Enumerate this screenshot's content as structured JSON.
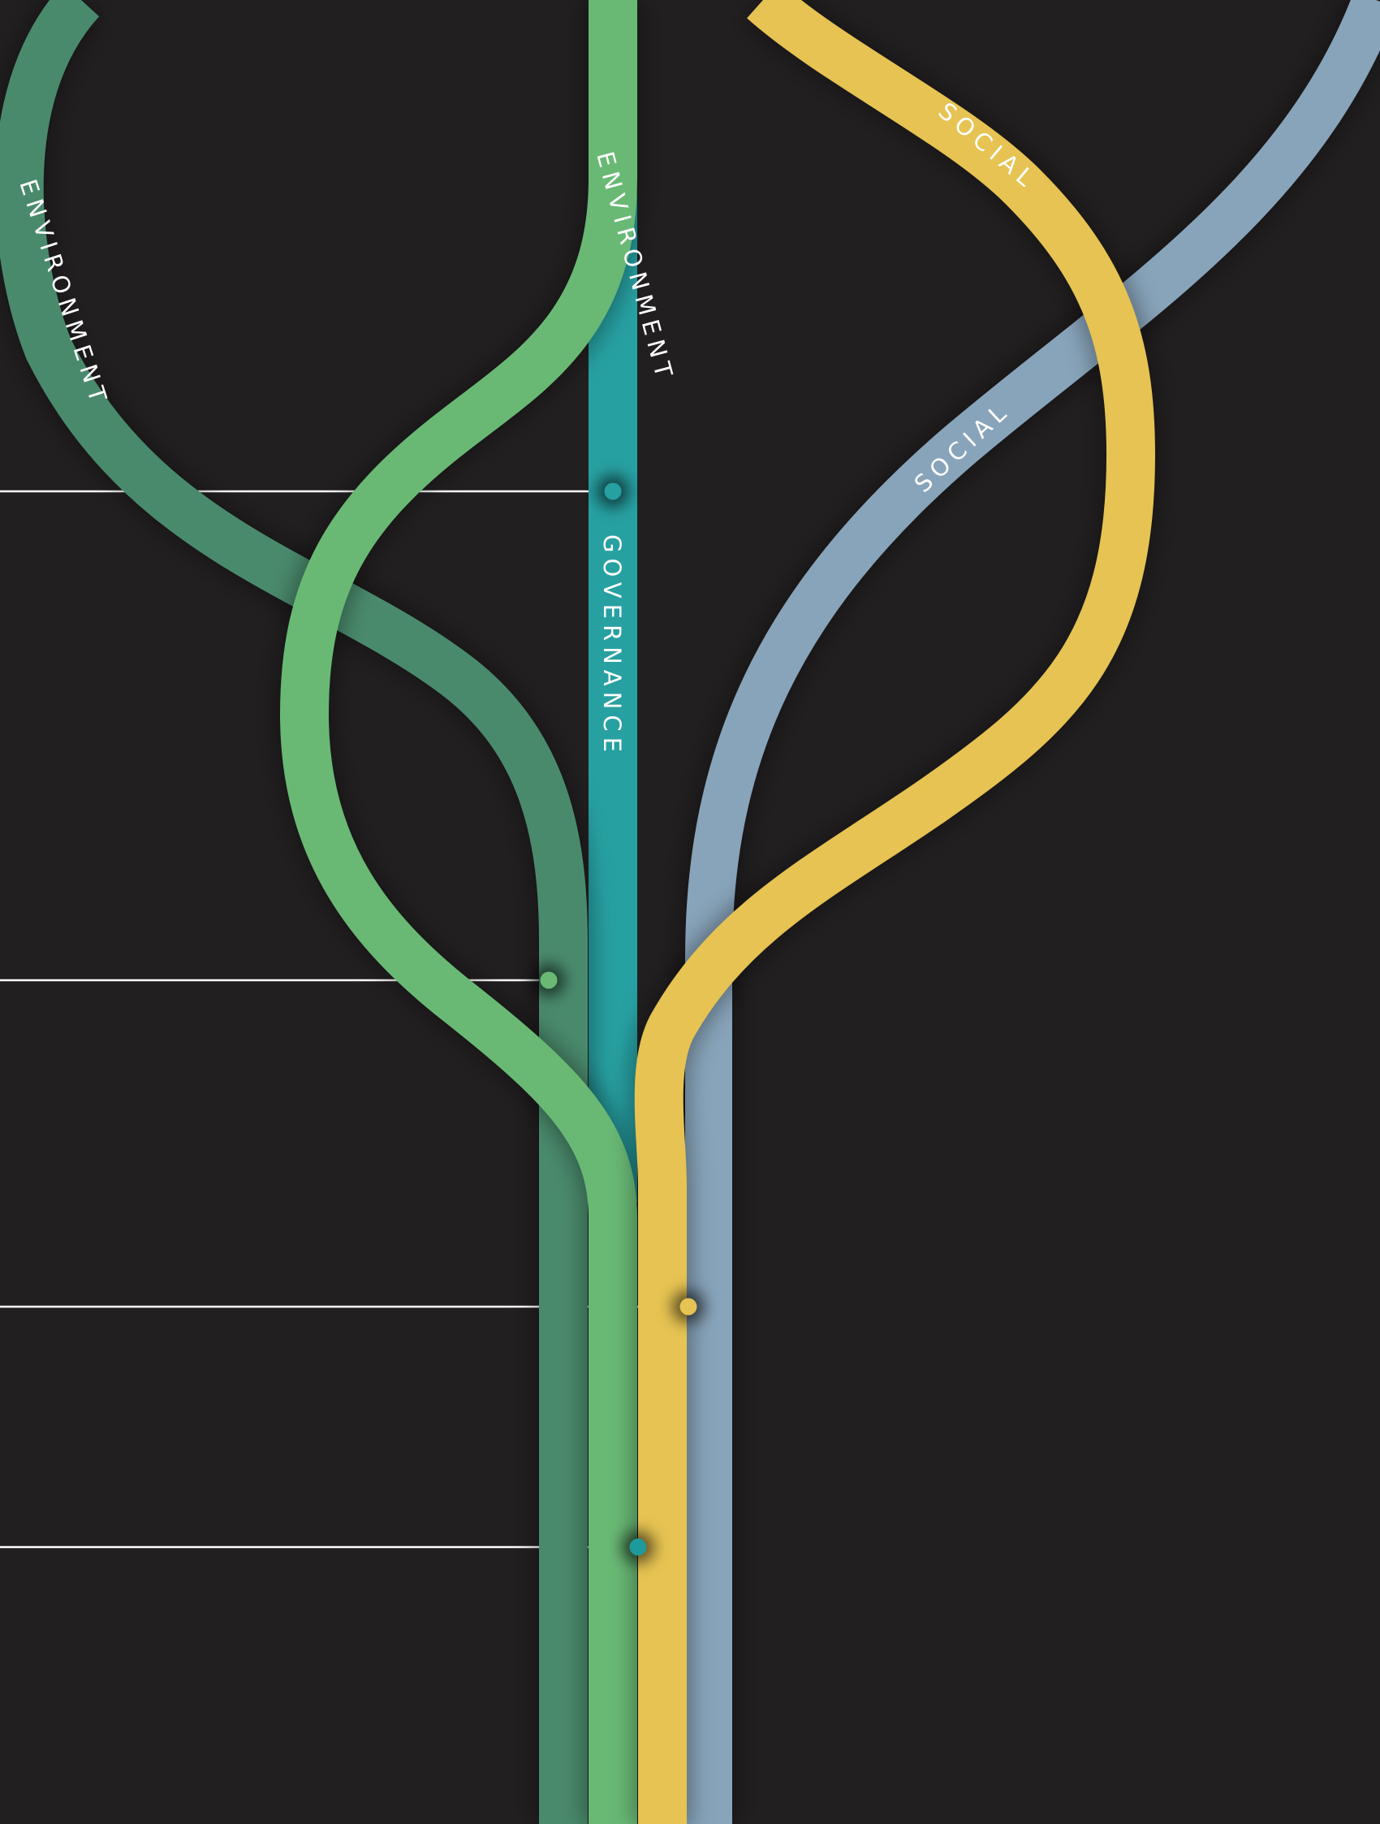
{
  "diagram": {
    "background_color": "#221f20",
    "leader_line_color": "#ffffff",
    "streams": [
      {
        "id": "environment-dark",
        "color": "#4a8a6c",
        "label": "ENVIRONMENT"
      },
      {
        "id": "environment-light",
        "color": "#69b975",
        "label": "ENVIRONMENT"
      },
      {
        "id": "governance",
        "color": "#27a0a2",
        "label": "GOVERNANCE"
      },
      {
        "id": "social-yellow",
        "color": "#e6c352",
        "label": "SOCIAL"
      },
      {
        "id": "social-blue",
        "color": "#88a4ba",
        "label": "SOCIAL"
      }
    ],
    "markers": [
      {
        "id": "marker-governance",
        "color": "#27a0a2"
      },
      {
        "id": "marker-environment",
        "color": "#69b975"
      },
      {
        "id": "marker-social",
        "color": "#e6c352"
      },
      {
        "id": "marker-merge",
        "color": "#1e9a9a"
      }
    ]
  }
}
